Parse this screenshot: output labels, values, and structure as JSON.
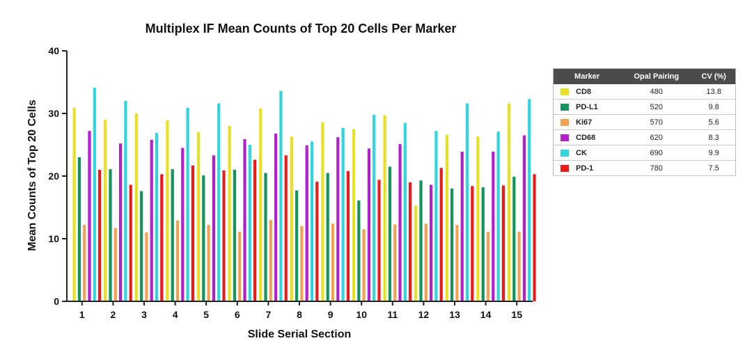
{
  "chart_data": {
    "type": "bar",
    "title": "Multiplex IF Mean Counts of Top 20 Cells Per Marker",
    "xlabel": "Slide Serial Section",
    "ylabel": "Mean Counts of Top 20 Cells",
    "ylim": [
      0,
      40
    ],
    "yticks": [
      0,
      10,
      20,
      30,
      40
    ],
    "categories": [
      "1",
      "2",
      "3",
      "4",
      "5",
      "6",
      "7",
      "8",
      "9",
      "10",
      "11",
      "12",
      "13",
      "14",
      "15"
    ],
    "series": [
      {
        "name": "CD8",
        "color": "#e8e020",
        "values": [
          30.9,
          29.0,
          30.0,
          28.9,
          27.0,
          28.0,
          30.8,
          26.3,
          28.6,
          27.5,
          29.7,
          15.3,
          26.6,
          26.3,
          31.6
        ]
      },
      {
        "name": "PD-L1",
        "color": "#12945a",
        "values": [
          23.0,
          21.1,
          17.6,
          21.1,
          20.1,
          21.0,
          20.5,
          17.7,
          20.5,
          16.1,
          21.5,
          19.3,
          18.0,
          18.2,
          19.9
        ]
      },
      {
        "name": "Ki67",
        "color": "#f5a050",
        "values": [
          12.2,
          11.7,
          11.0,
          12.9,
          12.2,
          11.1,
          13.0,
          12.0,
          12.4,
          11.5,
          12.3,
          12.4,
          12.2,
          11.1,
          11.1
        ]
      },
      {
        "name": "CD68",
        "color": "#b31fcc",
        "values": [
          27.2,
          25.2,
          25.8,
          24.5,
          23.3,
          25.9,
          26.8,
          24.9,
          26.2,
          24.4,
          25.1,
          18.6,
          23.9,
          23.9,
          26.5
        ]
      },
      {
        "name": "CK",
        "color": "#2fd6e0",
        "values": [
          34.1,
          32.0,
          26.9,
          30.9,
          31.6,
          25.0,
          33.6,
          25.5,
          27.7,
          29.8,
          28.5,
          27.2,
          31.6,
          27.1,
          32.3
        ]
      },
      {
        "name": "PD-1",
        "color": "#ee1a1a",
        "values": [
          21.0,
          18.6,
          20.3,
          21.7,
          20.9,
          22.6,
          23.3,
          19.1,
          20.8,
          19.4,
          19.0,
          21.3,
          18.4,
          18.5,
          20.3
        ]
      }
    ],
    "grid": false,
    "legend": "right"
  },
  "legend_table": {
    "headers": [
      "Marker",
      "Opal Pairing",
      "CV (%)"
    ],
    "rows": [
      {
        "marker": "CD8",
        "opal": "480",
        "cv": "13.8",
        "color": "#e8e020"
      },
      {
        "marker": "PD-L1",
        "opal": "520",
        "cv": "9.8",
        "color": "#12945a"
      },
      {
        "marker": "Ki67",
        "opal": "570",
        "cv": "5.6",
        "color": "#f5a050"
      },
      {
        "marker": "CD68",
        "opal": "620",
        "cv": "8.3",
        "color": "#b31fcc"
      },
      {
        "marker": "CK",
        "opal": "690",
        "cv": "9.9",
        "color": "#2fd6e0"
      },
      {
        "marker": "PD-1",
        "opal": "780",
        "cv": "7.5",
        "color": "#ee1a1a"
      }
    ]
  }
}
